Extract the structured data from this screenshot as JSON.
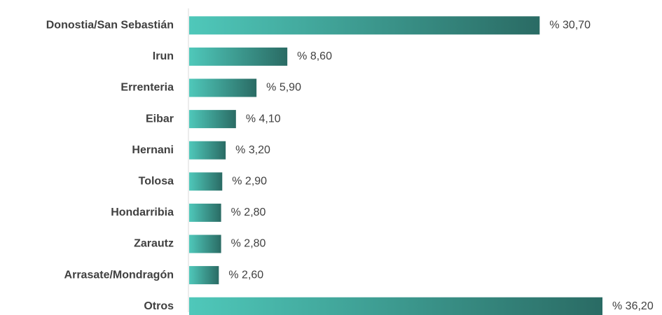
{
  "chart_data": {
    "type": "bar",
    "orientation": "horizontal",
    "categories": [
      "Donostia/San Sebastián",
      "Irun",
      "Errenteria",
      "Eibar",
      "Hernani",
      "Tolosa",
      "Hondarribia",
      "Zarautz",
      "Arrasate/Mondragón",
      "Otros"
    ],
    "values": [
      30.7,
      8.6,
      5.9,
      4.1,
      3.2,
      2.9,
      2.8,
      2.8,
      2.6,
      36.2
    ],
    "value_labels": [
      "% 30,70",
      "% 8,60",
      "% 5,90",
      "% 4,10",
      "% 3,20",
      "% 2,90",
      "% 2,80",
      "% 2,80",
      "% 2,60",
      "% 36,20"
    ],
    "color": [
      "#4fc8ba",
      "#2a6b64"
    ]
  }
}
